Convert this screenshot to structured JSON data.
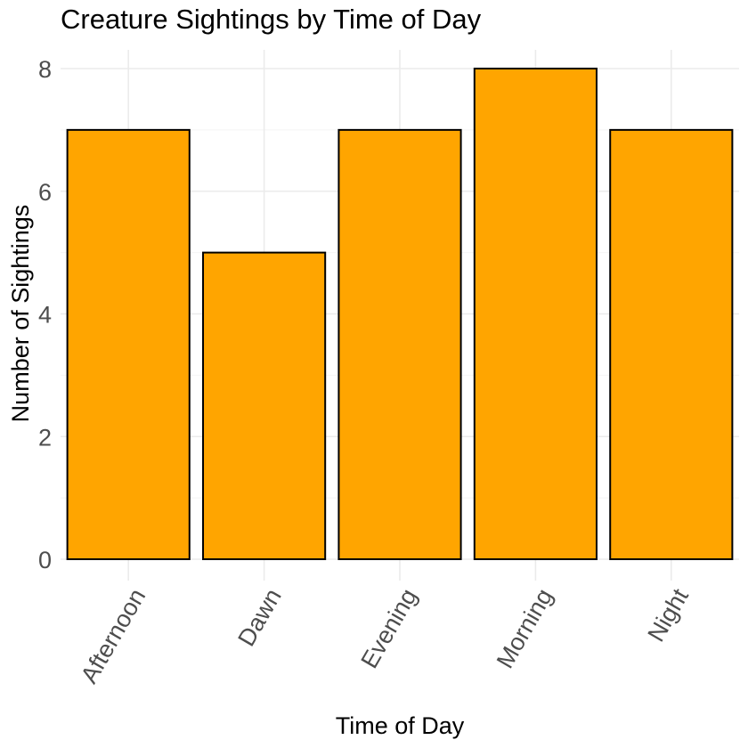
{
  "chart_data": {
    "type": "bar",
    "title": "Creature Sightings by Time of Day",
    "xlabel": "Time of Day",
    "ylabel": "Number of Sightings",
    "categories": [
      "Afternoon",
      "Dawn",
      "Evening",
      "Morning",
      "Night"
    ],
    "values": [
      7,
      5,
      7,
      8,
      7
    ],
    "ylim": [
      0,
      8.4
    ],
    "yticks": [
      0,
      2,
      4,
      6,
      8
    ],
    "grid": true,
    "legend": "none",
    "bar_color": "#FFA500",
    "bar_outline": "#000000"
  }
}
